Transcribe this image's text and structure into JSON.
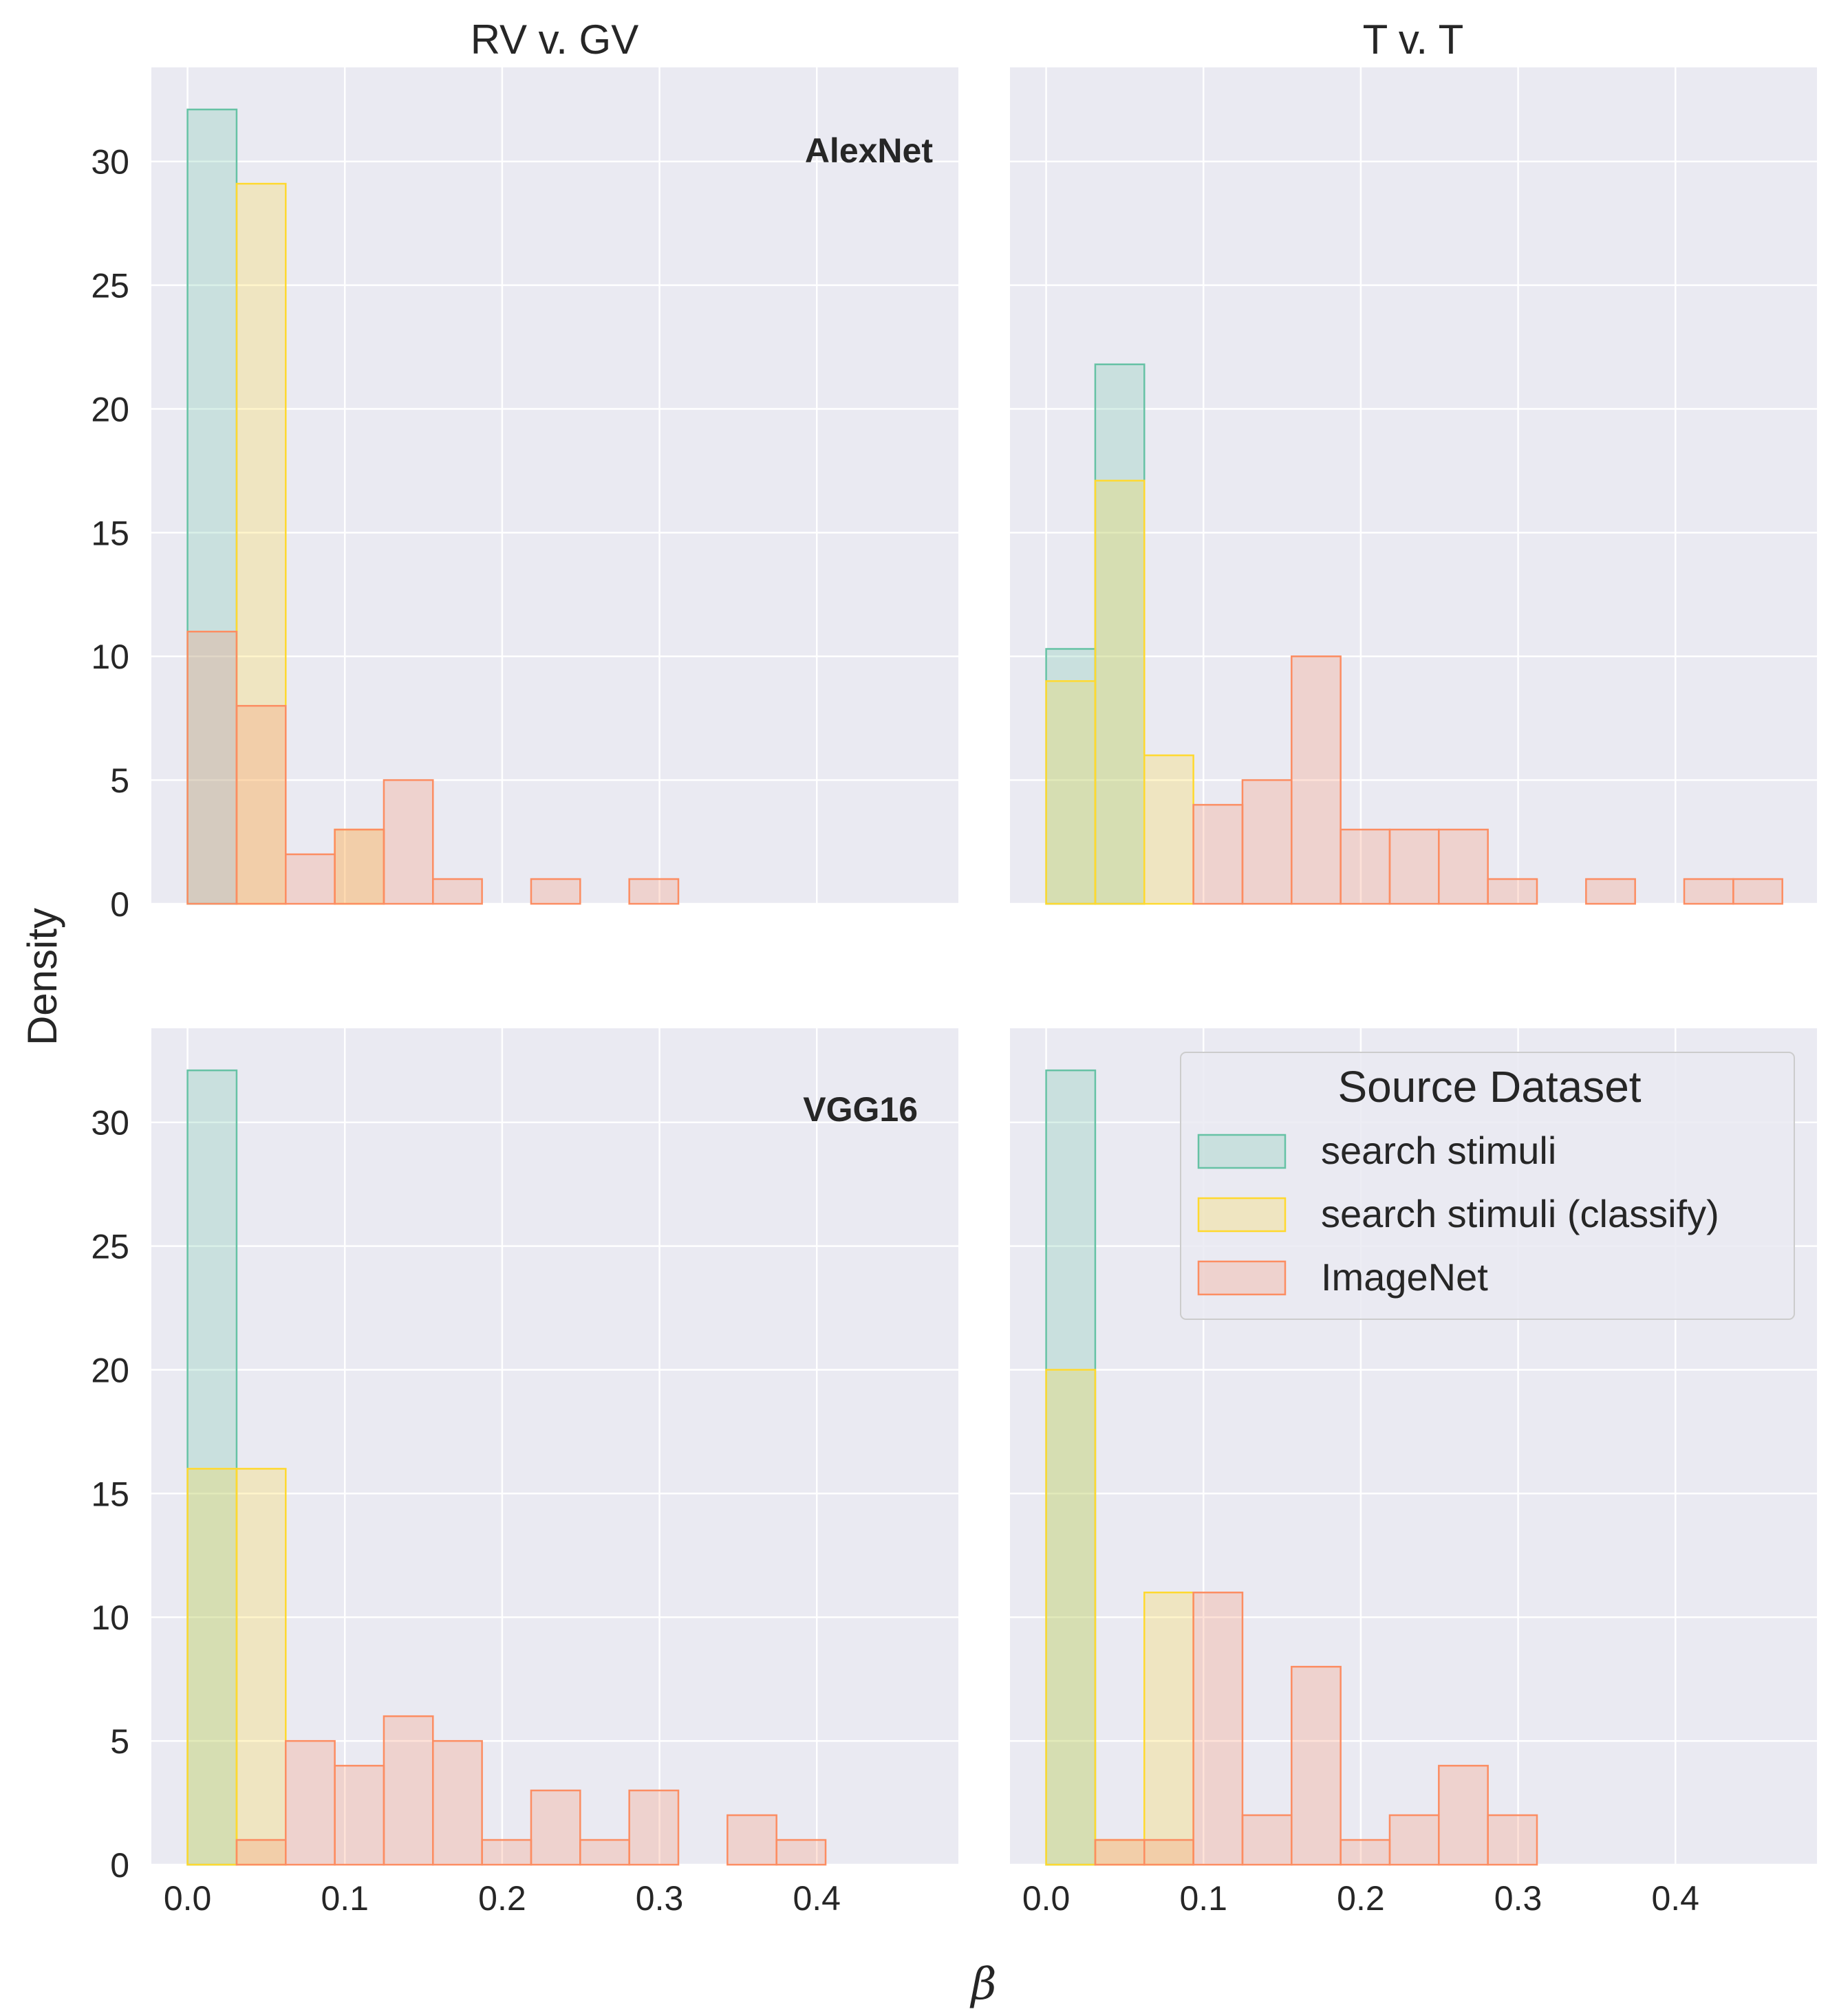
{
  "chart_data": {
    "type": "histogram",
    "ylabel": "Density",
    "xlabel": "β",
    "col_titles": [
      "RV v. GV",
      "T v. T"
    ],
    "row_labels": [
      "AlexNet",
      "VGG16"
    ],
    "xlim": [
      -0.023,
      0.49
    ],
    "ylim": [
      0,
      33.8
    ],
    "xticks": [
      "0.0",
      "0.1",
      "0.2",
      "0.3",
      "0.4"
    ],
    "yticks": [
      "0",
      "5",
      "10",
      "15",
      "20",
      "25",
      "30"
    ],
    "grid": true,
    "bin_width": 0.0312,
    "legend": {
      "title": "Source Dataset",
      "placement": "upper-right of bottom-right panel",
      "entries": [
        {
          "label": "search stimuli",
          "color": "#66c2a5"
        },
        {
          "label": "search stimuli (classify)",
          "color": "#ffd92f"
        },
        {
          "label": "ImageNet",
          "color": "#fc8d62"
        }
      ]
    },
    "panels": [
      {
        "row": 0,
        "col": 0,
        "series": [
          {
            "name": "search stimuli",
            "color": "#66c2a5",
            "values": [
              32.1
            ]
          },
          {
            "name": "search stimuli (classify)",
            "color": "#ffd92f",
            "values": [
              0,
              29.1,
              0,
              3
            ]
          },
          {
            "name": "ImageNet",
            "color": "#fc8d62",
            "values": [
              11,
              8,
              2,
              3,
              5,
              1,
              0,
              1,
              0,
              1
            ]
          }
        ]
      },
      {
        "row": 0,
        "col": 1,
        "series": [
          {
            "name": "search stimuli",
            "color": "#66c2a5",
            "values": [
              10.3,
              21.8
            ]
          },
          {
            "name": "search stimuli (classify)",
            "color": "#ffd92f",
            "values": [
              9,
              17.1,
              6
            ]
          },
          {
            "name": "ImageNet",
            "color": "#fc8d62",
            "values": [
              0,
              0,
              0,
              4,
              5,
              10,
              3,
              3,
              3,
              1,
              0,
              1,
              0,
              1,
              1
            ]
          }
        ]
      },
      {
        "row": 1,
        "col": 0,
        "series": [
          {
            "name": "search stimuli",
            "color": "#66c2a5",
            "values": [
              32.1
            ]
          },
          {
            "name": "search stimuli (classify)",
            "color": "#ffd92f",
            "values": [
              16,
              16
            ]
          },
          {
            "name": "ImageNet",
            "color": "#fc8d62",
            "values": [
              0,
              1,
              5,
              4,
              6,
              5,
              1,
              3,
              1,
              3,
              0,
              2,
              1
            ]
          }
        ]
      },
      {
        "row": 1,
        "col": 1,
        "series": [
          {
            "name": "search stimuli",
            "color": "#66c2a5",
            "values": [
              32.1
            ]
          },
          {
            "name": "search stimuli (classify)",
            "color": "#ffd92f",
            "values": [
              20,
              1,
              11
            ]
          },
          {
            "name": "ImageNet",
            "color": "#fc8d62",
            "values": [
              0,
              1,
              1,
              11,
              2,
              8,
              1,
              2,
              4,
              2
            ]
          }
        ]
      }
    ]
  }
}
